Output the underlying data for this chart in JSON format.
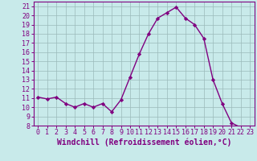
{
  "x": [
    0,
    1,
    2,
    3,
    4,
    5,
    6,
    7,
    8,
    9,
    10,
    11,
    12,
    13,
    14,
    15,
    16,
    17,
    18,
    19,
    20,
    21,
    22,
    23
  ],
  "y": [
    11.1,
    10.9,
    11.1,
    10.4,
    10.0,
    10.4,
    10.0,
    10.4,
    9.5,
    10.8,
    13.3,
    15.8,
    18.0,
    19.7,
    20.3,
    20.9,
    19.7,
    19.0,
    17.5,
    13.0,
    10.4,
    8.3,
    7.8,
    7.8
  ],
  "line_color": "#800080",
  "marker": "D",
  "markersize": 2.2,
  "linewidth": 1.0,
  "xlabel": "Windchill (Refroidissement éolien,°C)",
  "xlabel_fontsize": 7,
  "ylim_min": 8,
  "ylim_max": 21.5,
  "xlim_min": -0.5,
  "xlim_max": 23.5,
  "yticks": [
    8,
    9,
    10,
    11,
    12,
    13,
    14,
    15,
    16,
    17,
    18,
    19,
    20,
    21
  ],
  "xticks": [
    0,
    1,
    2,
    3,
    4,
    5,
    6,
    7,
    8,
    9,
    10,
    11,
    12,
    13,
    14,
    15,
    16,
    17,
    18,
    19,
    20,
    21,
    22,
    23
  ],
  "tick_fontsize": 6,
  "bg_color": "#c8eaea",
  "grid_color": "#9bbaba",
  "axis_color": "#800080",
  "spine_color": "#800080"
}
